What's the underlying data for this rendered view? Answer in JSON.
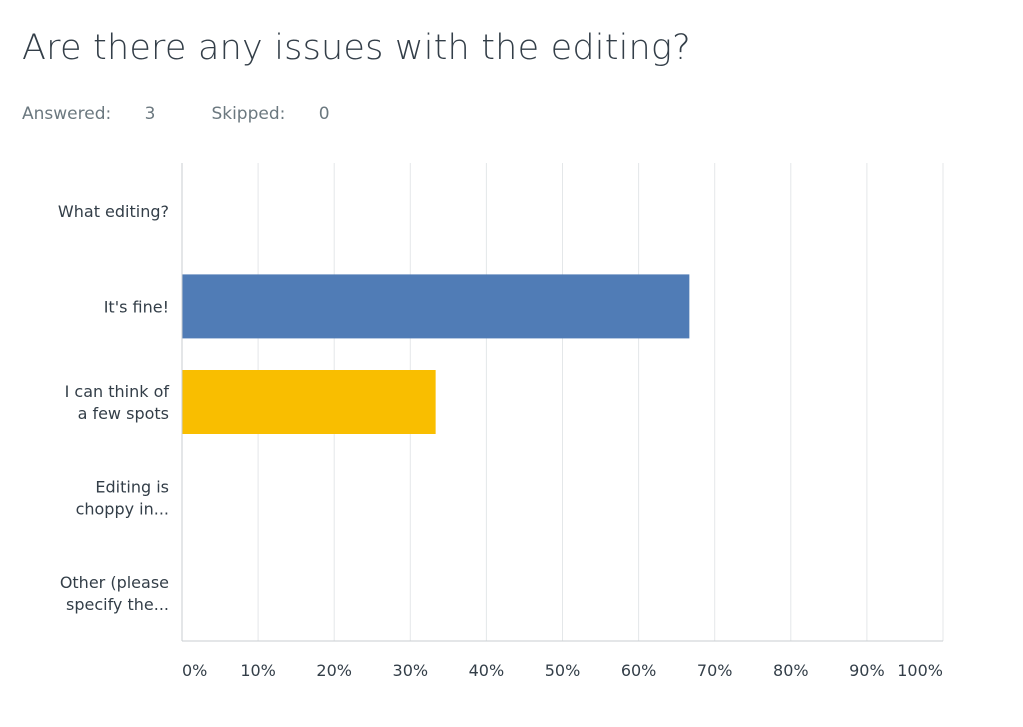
{
  "question": {
    "title": "Are there any issues with the editing?",
    "answered_label": "Answered:",
    "answered_count": "3",
    "skipped_label": "Skipped:",
    "skipped_count": "0"
  },
  "chart_data": {
    "type": "bar",
    "orientation": "horizontal",
    "categories": [
      [
        "What editing?"
      ],
      [
        "It's fine!"
      ],
      [
        "I can think of",
        "a few spots"
      ],
      [
        "Editing is",
        "choppy in..."
      ],
      [
        "Other (please",
        "specify the..."
      ]
    ],
    "values": [
      0,
      66.67,
      33.33,
      0,
      0
    ],
    "colors": [
      "#507cb6",
      "#507cb6",
      "#f9be00",
      "#507cb6",
      "#507cb6"
    ],
    "xlim": [
      0,
      100
    ],
    "xticks": [
      "0%",
      "10%",
      "20%",
      "30%",
      "40%",
      "50%",
      "60%",
      "70%",
      "80%",
      "90%",
      "100%"
    ],
    "grid": true,
    "title": "",
    "xlabel": "",
    "ylabel": ""
  }
}
